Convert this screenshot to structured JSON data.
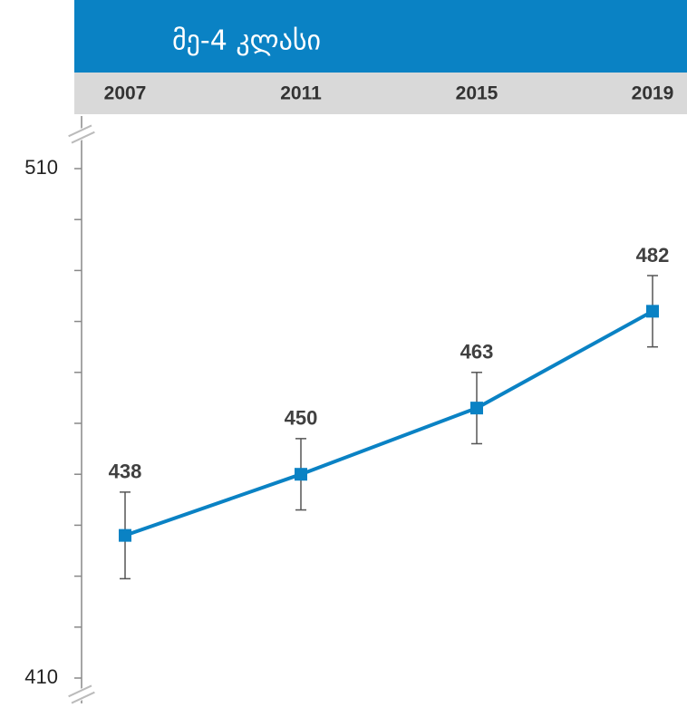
{
  "chart_data": {
    "type": "line",
    "title": "მე-4 კლასი",
    "categories": [
      "2007",
      "2011",
      "2015",
      "2019"
    ],
    "series": [
      {
        "name": null,
        "color": "#0a82c4",
        "values": [
          438,
          450,
          463,
          482
        ],
        "errors": [
          8.5,
          7,
          7,
          7
        ]
      }
    ],
    "ylim": [
      410,
      510
    ],
    "yticks": [
      410,
      510
    ],
    "yminor_ticks": [
      420,
      430,
      440,
      450,
      460,
      470,
      480,
      490,
      500
    ],
    "axis_break": true
  }
}
